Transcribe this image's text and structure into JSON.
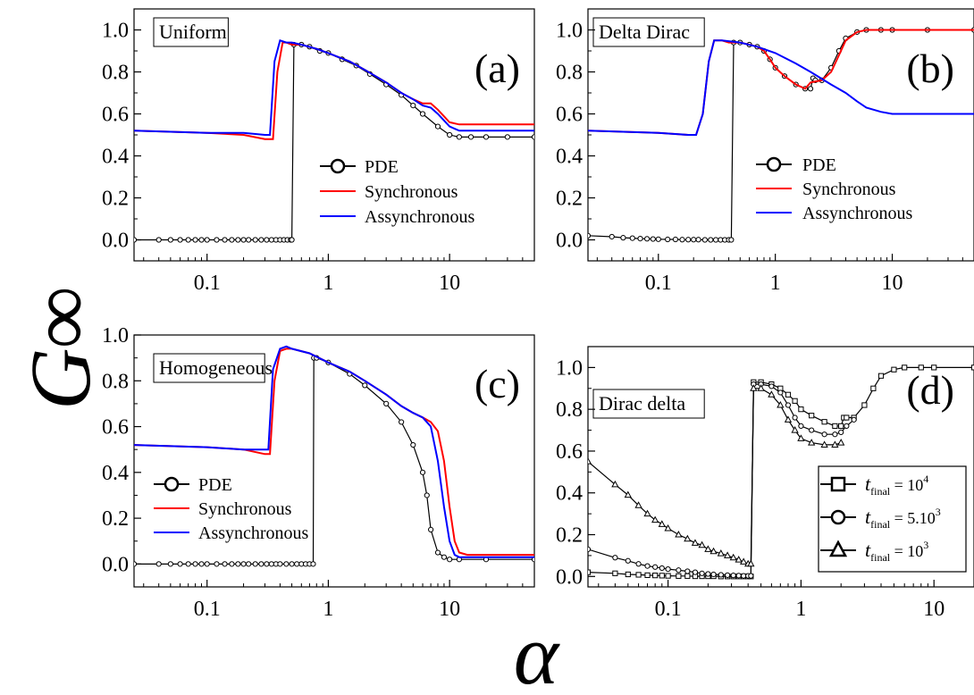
{
  "figure": {
    "ylabel": "G∞",
    "xlabel": "α"
  },
  "chart_data": [
    {
      "type": "line",
      "panel_label": "(a)",
      "box_label": "Uniform",
      "x_scale": "log",
      "xlim": [
        0.025,
        50
      ],
      "ylim": [
        -0.1,
        1.1
      ],
      "x_ticks": [
        "0.1",
        "1",
        "10"
      ],
      "y_ticks": [
        "0.0",
        "0.2",
        "0.4",
        "0.6",
        "0.8",
        "1.0"
      ],
      "legend_position": "center-right",
      "series": [
        {
          "name": "PDE",
          "color": "#000000",
          "marker": "circle",
          "x": [
            0.025,
            0.04,
            0.05,
            0.06,
            0.07,
            0.08,
            0.09,
            0.1,
            0.12,
            0.14,
            0.16,
            0.18,
            0.2,
            0.22,
            0.25,
            0.28,
            0.31,
            0.34,
            0.37,
            0.4,
            0.43,
            0.46,
            0.49,
            0.5,
            0.52,
            0.6,
            0.7,
            0.85,
            1.0,
            1.3,
            1.7,
            2.2,
            3,
            4,
            5,
            6,
            8,
            10,
            12,
            15,
            20,
            30,
            50
          ],
          "y": [
            0.0,
            0.0,
            0.0,
            0.0,
            0.0,
            0.0,
            0.0,
            0.0,
            0.0,
            0.0,
            0.0,
            0.0,
            0.0,
            0.0,
            0.0,
            0.0,
            0.0,
            0.0,
            0.0,
            0.0,
            0.0,
            0.0,
            0.0,
            0.0,
            0.93,
            0.93,
            0.92,
            0.9,
            0.89,
            0.86,
            0.83,
            0.79,
            0.74,
            0.69,
            0.64,
            0.6,
            0.54,
            0.5,
            0.49,
            0.49,
            0.49,
            0.49,
            0.49
          ]
        },
        {
          "name": "Synchronous",
          "color": "#ff0000",
          "x": [
            0.025,
            0.1,
            0.2,
            0.3,
            0.35,
            0.38,
            0.42,
            0.45,
            0.5,
            0.6,
            0.8,
            1,
            1.5,
            2,
            3,
            4,
            5,
            6,
            7,
            8,
            10,
            12,
            20,
            30,
            50
          ],
          "y": [
            0.52,
            0.51,
            0.5,
            0.48,
            0.48,
            0.8,
            0.94,
            0.94,
            0.93,
            0.93,
            0.91,
            0.89,
            0.85,
            0.81,
            0.75,
            0.7,
            0.67,
            0.65,
            0.65,
            0.62,
            0.56,
            0.55,
            0.55,
            0.55,
            0.55
          ]
        },
        {
          "name": "Assynchronous",
          "color": "#0000ff",
          "x": [
            0.025,
            0.1,
            0.2,
            0.3,
            0.33,
            0.36,
            0.4,
            0.45,
            0.5,
            0.6,
            0.8,
            1,
            1.5,
            2,
            3,
            4,
            5,
            6,
            7,
            8,
            10,
            12,
            20,
            30,
            50
          ],
          "y": [
            0.52,
            0.51,
            0.51,
            0.5,
            0.5,
            0.85,
            0.95,
            0.94,
            0.94,
            0.93,
            0.91,
            0.89,
            0.85,
            0.81,
            0.75,
            0.7,
            0.67,
            0.64,
            0.63,
            0.6,
            0.54,
            0.52,
            0.52,
            0.52,
            0.52
          ]
        }
      ]
    },
    {
      "type": "line",
      "panel_label": "(b)",
      "box_label": "Delta Dirac",
      "x_scale": "log",
      "xlim": [
        0.025,
        50
      ],
      "ylim": [
        -0.1,
        1.1
      ],
      "x_ticks": [
        "0.1",
        "1",
        "10"
      ],
      "y_ticks": [
        "0.0",
        "0.2",
        "0.4",
        "0.6",
        "0.8",
        "1.0"
      ],
      "legend_position": "center-right",
      "series": [
        {
          "name": "PDE",
          "color": "#000000",
          "marker": "circle",
          "x": [
            0.025,
            0.04,
            0.05,
            0.06,
            0.07,
            0.08,
            0.09,
            0.1,
            0.12,
            0.14,
            0.16,
            0.18,
            0.2,
            0.22,
            0.25,
            0.28,
            0.31,
            0.34,
            0.37,
            0.4,
            0.42,
            0.44,
            0.5,
            0.6,
            0.7,
            0.8,
            0.9,
            1.0,
            1.2,
            1.5,
            1.8,
            2.0,
            2.1,
            2.2,
            2.5,
            3,
            3.5,
            4,
            5,
            6,
            8,
            10,
            20,
            50
          ],
          "y": [
            0.02,
            0.015,
            0.01,
            0.008,
            0.006,
            0.005,
            0.004,
            0.003,
            0.002,
            0.002,
            0.001,
            0.001,
            0.001,
            0.001,
            0.0,
            0.0,
            0.0,
            0.0,
            0.0,
            0.0,
            0.0,
            0.94,
            0.94,
            0.93,
            0.92,
            0.9,
            0.86,
            0.82,
            0.78,
            0.74,
            0.72,
            0.72,
            0.77,
            0.76,
            0.76,
            0.82,
            0.9,
            0.96,
            0.99,
            1.0,
            1.0,
            1.0,
            1.0,
            1.0
          ]
        },
        {
          "name": "Synchronous",
          "color": "#ff0000",
          "x": [
            0.025,
            0.1,
            0.18,
            0.21,
            0.24,
            0.27,
            0.3,
            0.35,
            0.4,
            0.5,
            0.6,
            0.7,
            0.8,
            0.9,
            1.0,
            1.2,
            1.5,
            1.8,
            2.0,
            2.5,
            3,
            3.5,
            4,
            5,
            6,
            8,
            10,
            20,
            50
          ],
          "y": [
            0.52,
            0.51,
            0.5,
            0.5,
            0.6,
            0.85,
            0.95,
            0.95,
            0.94,
            0.94,
            0.93,
            0.92,
            0.9,
            0.86,
            0.82,
            0.78,
            0.74,
            0.72,
            0.75,
            0.76,
            0.8,
            0.88,
            0.95,
            0.99,
            1.0,
            1.0,
            1.0,
            1.0,
            1.0
          ]
        },
        {
          "name": "Assynchronous",
          "color": "#0000ff",
          "x": [
            0.025,
            0.1,
            0.18,
            0.21,
            0.24,
            0.27,
            0.3,
            0.35,
            0.5,
            0.7,
            1,
            1.5,
            2,
            3,
            4,
            5,
            6,
            8,
            10,
            20,
            50
          ],
          "y": [
            0.52,
            0.51,
            0.5,
            0.5,
            0.6,
            0.85,
            0.95,
            0.95,
            0.94,
            0.92,
            0.89,
            0.84,
            0.8,
            0.74,
            0.7,
            0.66,
            0.63,
            0.61,
            0.6,
            0.6,
            0.6
          ]
        }
      ]
    },
    {
      "type": "line",
      "panel_label": "(c)",
      "box_label": "Homogeneous",
      "x_scale": "log",
      "xlim": [
        0.025,
        50
      ],
      "ylim": [
        -0.1,
        1.0
      ],
      "x_ticks": [
        "0.1",
        "1",
        "10"
      ],
      "y_ticks": [
        "0.0",
        "0.2",
        "0.4",
        "0.6",
        "0.8",
        "1.0"
      ],
      "legend_position": "lower-left",
      "series": [
        {
          "name": "PDE",
          "color": "#000000",
          "marker": "circle",
          "x": [
            0.025,
            0.04,
            0.05,
            0.06,
            0.07,
            0.08,
            0.09,
            0.1,
            0.12,
            0.14,
            0.16,
            0.18,
            0.2,
            0.22,
            0.25,
            0.28,
            0.31,
            0.34,
            0.37,
            0.4,
            0.45,
            0.5,
            0.55,
            0.6,
            0.65,
            0.7,
            0.75,
            0.76,
            0.8,
            1,
            1.5,
            2,
            3,
            4,
            5,
            6,
            6.5,
            7,
            8,
            9,
            10,
            12,
            20,
            50
          ],
          "y": [
            0.0,
            0.0,
            0.0,
            0.0,
            0.0,
            0.0,
            0.0,
            0.0,
            0.0,
            0.0,
            0.0,
            0.0,
            0.0,
            0.0,
            0.0,
            0.0,
            0.0,
            0.0,
            0.0,
            0.0,
            0.0,
            0.0,
            0.0,
            0.0,
            0.0,
            0.0,
            0.0,
            0.9,
            0.9,
            0.88,
            0.83,
            0.78,
            0.7,
            0.62,
            0.52,
            0.4,
            0.3,
            0.15,
            0.05,
            0.03,
            0.02,
            0.02,
            0.02,
            0.02
          ]
        },
        {
          "name": "Synchronous",
          "color": "#ff0000",
          "x": [
            0.025,
            0.1,
            0.2,
            0.3,
            0.33,
            0.36,
            0.4,
            0.45,
            0.5,
            0.7,
            1,
            1.5,
            2,
            3,
            4,
            5,
            6,
            7,
            8,
            9,
            10,
            11,
            12,
            14,
            20,
            50
          ],
          "y": [
            0.52,
            0.51,
            0.5,
            0.48,
            0.48,
            0.8,
            0.93,
            0.94,
            0.94,
            0.92,
            0.88,
            0.84,
            0.8,
            0.74,
            0.69,
            0.66,
            0.64,
            0.62,
            0.58,
            0.45,
            0.25,
            0.1,
            0.05,
            0.04,
            0.04,
            0.04
          ]
        },
        {
          "name": "Assynchronous",
          "color": "#0000ff",
          "x": [
            0.025,
            0.1,
            0.2,
            0.3,
            0.32,
            0.35,
            0.4,
            0.45,
            0.5,
            0.7,
            1,
            1.5,
            2,
            3,
            4,
            5,
            6,
            7,
            8,
            9,
            10,
            11,
            12,
            20,
            50
          ],
          "y": [
            0.52,
            0.51,
            0.5,
            0.5,
            0.5,
            0.85,
            0.94,
            0.95,
            0.94,
            0.92,
            0.88,
            0.84,
            0.8,
            0.74,
            0.69,
            0.66,
            0.64,
            0.6,
            0.45,
            0.25,
            0.1,
            0.04,
            0.03,
            0.03,
            0.03
          ]
        }
      ]
    },
    {
      "type": "line",
      "panel_label": "(d)",
      "box_label": "Dirac delta",
      "x_scale": "log",
      "xlim": [
        0.025,
        20
      ],
      "ylim": [
        -0.05,
        1.1
      ],
      "x_ticks": [
        "0.1",
        "1",
        "10"
      ],
      "y_ticks": [
        "0.0",
        "0.2",
        "0.4",
        "0.6",
        "0.8",
        "1.0"
      ],
      "legend_position": "lower-right",
      "series": [
        {
          "name_prefix": "t",
          "name_sub": "final",
          "name_suffix": " = 10",
          "name_sup": "4",
          "color": "#000000",
          "marker": "square",
          "x": [
            0.025,
            0.04,
            0.05,
            0.06,
            0.07,
            0.08,
            0.09,
            0.1,
            0.12,
            0.14,
            0.16,
            0.18,
            0.2,
            0.22,
            0.25,
            0.28,
            0.31,
            0.34,
            0.37,
            0.4,
            0.42,
            0.44,
            0.5,
            0.6,
            0.7,
            0.8,
            0.9,
            1.0,
            1.2,
            1.5,
            1.8,
            2.0,
            2.1,
            2.2,
            2.5,
            3,
            3.5,
            4,
            5,
            6,
            8,
            10,
            20
          ],
          "y": [
            0.02,
            0.015,
            0.01,
            0.008,
            0.006,
            0.005,
            0.004,
            0.003,
            0.002,
            0.002,
            0.001,
            0.001,
            0.001,
            0.001,
            0.0,
            0.0,
            0.0,
            0.0,
            0.0,
            0.0,
            0.0,
            0.93,
            0.93,
            0.92,
            0.9,
            0.87,
            0.84,
            0.8,
            0.77,
            0.74,
            0.72,
            0.72,
            0.76,
            0.76,
            0.76,
            0.82,
            0.9,
            0.96,
            0.99,
            1.0,
            1.0,
            1.0,
            1.0
          ]
        },
        {
          "name_prefix": "t",
          "name_sub": "final",
          "name_suffix": " = 5.10",
          "name_sup": "3",
          "color": "#000000",
          "marker": "circle",
          "x": [
            0.025,
            0.04,
            0.05,
            0.06,
            0.07,
            0.08,
            0.09,
            0.1,
            0.12,
            0.14,
            0.16,
            0.18,
            0.2,
            0.22,
            0.25,
            0.28,
            0.31,
            0.34,
            0.37,
            0.4,
            0.42,
            0.44,
            0.5,
            0.6,
            0.7,
            0.8,
            0.9,
            1.0,
            1.2,
            1.5,
            1.8,
            2.0,
            2.2,
            2.5
          ],
          "y": [
            0.13,
            0.09,
            0.075,
            0.06,
            0.05,
            0.045,
            0.04,
            0.035,
            0.03,
            0.025,
            0.02,
            0.015,
            0.012,
            0.01,
            0.008,
            0.006,
            0.005,
            0.004,
            0.003,
            0.003,
            0.003,
            0.92,
            0.92,
            0.91,
            0.88,
            0.82,
            0.76,
            0.72,
            0.7,
            0.68,
            0.68,
            0.69,
            0.72,
            0.75
          ]
        },
        {
          "name_prefix": "t",
          "name_sub": "final",
          "name_suffix": " = 10",
          "name_sup": "3",
          "color": "#000000",
          "marker": "triangle",
          "x": [
            0.025,
            0.04,
            0.05,
            0.06,
            0.07,
            0.08,
            0.09,
            0.1,
            0.12,
            0.14,
            0.16,
            0.18,
            0.2,
            0.22,
            0.25,
            0.28,
            0.31,
            0.34,
            0.37,
            0.4,
            0.42,
            0.44,
            0.5,
            0.6,
            0.7,
            0.8,
            0.9,
            1.0,
            1.2,
            1.5,
            1.8,
            2.0
          ],
          "y": [
            0.55,
            0.44,
            0.39,
            0.34,
            0.3,
            0.27,
            0.25,
            0.23,
            0.2,
            0.18,
            0.16,
            0.15,
            0.13,
            0.12,
            0.11,
            0.1,
            0.09,
            0.08,
            0.07,
            0.06,
            0.06,
            0.9,
            0.9,
            0.87,
            0.82,
            0.75,
            0.7,
            0.66,
            0.64,
            0.63,
            0.63,
            0.64
          ]
        }
      ]
    }
  ]
}
